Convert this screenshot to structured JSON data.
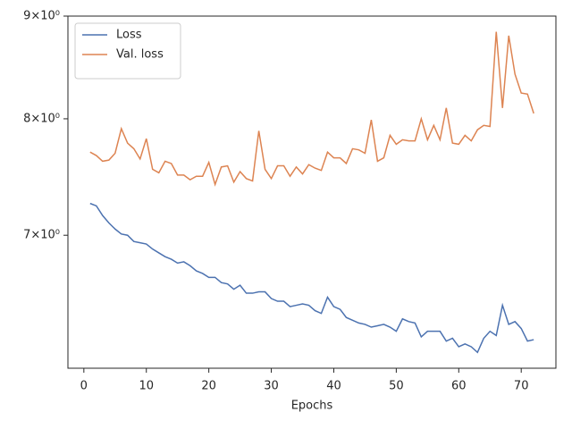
{
  "chart_data": {
    "type": "line",
    "xlabel": "Epochs",
    "x": [
      1,
      2,
      3,
      4,
      5,
      6,
      7,
      8,
      9,
      10,
      11,
      12,
      13,
      14,
      15,
      16,
      17,
      18,
      19,
      20,
      21,
      22,
      23,
      24,
      25,
      26,
      27,
      28,
      29,
      30,
      31,
      32,
      33,
      34,
      35,
      36,
      37,
      38,
      39,
      40,
      41,
      42,
      43,
      44,
      45,
      46,
      47,
      48,
      49,
      50,
      51,
      52,
      53,
      54,
      55,
      56,
      57,
      58,
      59,
      60,
      61,
      62,
      63,
      64,
      65,
      66,
      67,
      68,
      69,
      70,
      71,
      72
    ],
    "series": [
      {
        "name": "Loss",
        "color": "#4c72b0",
        "values": [
          7.26,
          7.24,
          7.16,
          7.1,
          7.05,
          7.01,
          7.0,
          6.95,
          6.94,
          6.93,
          6.89,
          6.86,
          6.83,
          6.81,
          6.78,
          6.79,
          6.76,
          6.72,
          6.7,
          6.67,
          6.67,
          6.63,
          6.62,
          6.58,
          6.61,
          6.55,
          6.55,
          6.56,
          6.56,
          6.51,
          6.49,
          6.49,
          6.45,
          6.46,
          6.47,
          6.46,
          6.42,
          6.4,
          6.52,
          6.45,
          6.43,
          6.37,
          6.35,
          6.33,
          6.32,
          6.3,
          6.31,
          6.32,
          6.3,
          6.27,
          6.36,
          6.34,
          6.33,
          6.23,
          6.27,
          6.27,
          6.27,
          6.2,
          6.22,
          6.16,
          6.18,
          6.16,
          6.12,
          6.22,
          6.27,
          6.24,
          6.46,
          6.32,
          6.34,
          6.29,
          6.2,
          6.21
        ]
      },
      {
        "name": "Val. loss",
        "color": "#dd8452",
        "values": [
          7.7,
          7.67,
          7.62,
          7.63,
          7.69,
          7.91,
          7.78,
          7.73,
          7.64,
          7.82,
          7.55,
          7.52,
          7.62,
          7.6,
          7.5,
          7.5,
          7.46,
          7.49,
          7.49,
          7.61,
          7.42,
          7.57,
          7.58,
          7.44,
          7.53,
          7.47,
          7.45,
          7.89,
          7.55,
          7.47,
          7.58,
          7.58,
          7.49,
          7.57,
          7.51,
          7.59,
          7.56,
          7.54,
          7.7,
          7.65,
          7.65,
          7.6,
          7.73,
          7.72,
          7.69,
          7.99,
          7.62,
          7.65,
          7.85,
          7.77,
          7.81,
          7.8,
          7.8,
          8.0,
          7.81,
          7.94,
          7.81,
          8.1,
          7.78,
          7.77,
          7.85,
          7.8,
          7.9,
          7.94,
          7.93,
          8.84,
          8.1,
          8.8,
          8.42,
          8.24,
          8.23,
          8.05
        ]
      }
    ],
    "xlim": [
      -2.55,
      75.55
    ],
    "xticks": [
      0,
      10,
      20,
      30,
      40,
      50,
      60,
      70
    ],
    "ylim": [
      6.01,
      9
    ],
    "log_y": true,
    "yticks": [
      {
        "value": 7,
        "label": "7×10⁰"
      },
      {
        "value": 8,
        "label": "8×10⁰"
      },
      {
        "value": 9,
        "label": "9×10⁰"
      }
    ],
    "legend": "upper left",
    "grid": false
  }
}
